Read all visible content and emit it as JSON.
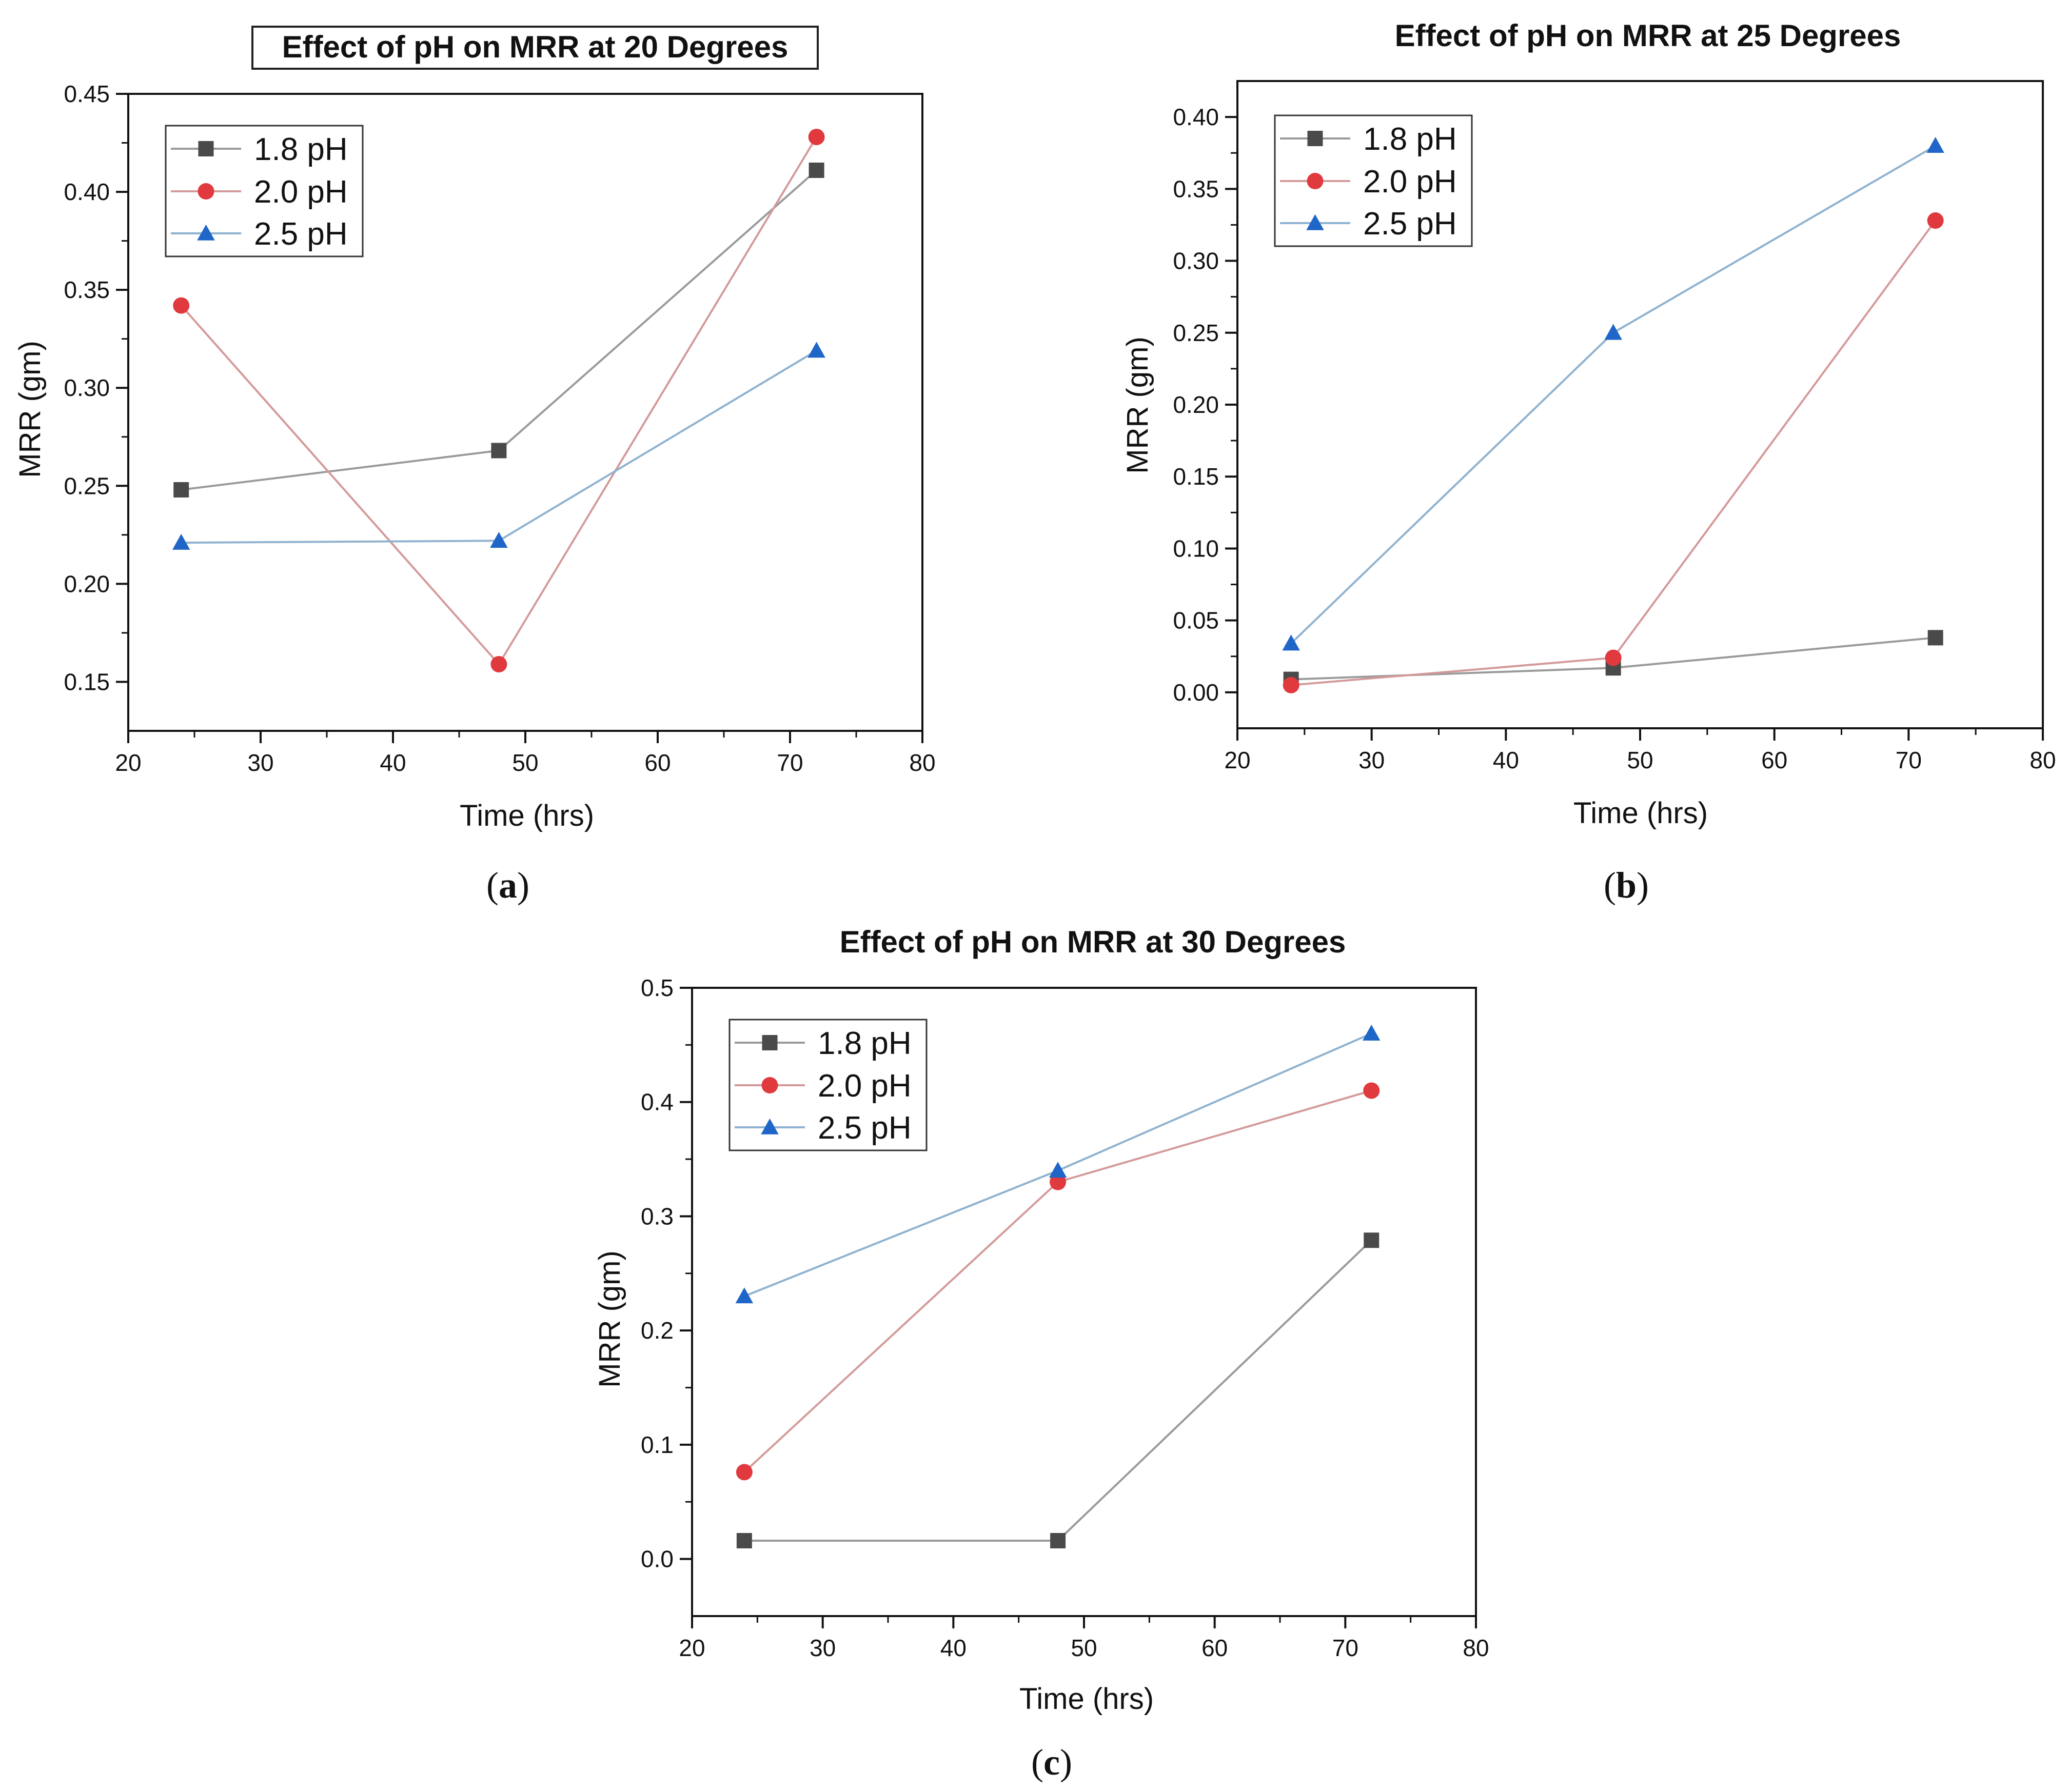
{
  "chart_data": [
    {
      "type": "line",
      "title": "Effect of pH on MRR at 20 Degrees",
      "caption_letter": "a",
      "xlabel": "Time (hrs)",
      "ylabel": "MRR (gm)",
      "xlim": [
        20,
        80
      ],
      "ylim": [
        0.125,
        0.45
      ],
      "xticks": [
        "20",
        "30",
        "40",
        "50",
        "60",
        "70",
        "80"
      ],
      "yticks": [
        "0.15",
        "0.20",
        "0.25",
        "0.30",
        "0.35",
        "0.40",
        "0.45"
      ],
      "legend_position": "top-left",
      "x": [
        24,
        48,
        72
      ],
      "series": [
        {
          "name": "1.8 pH",
          "marker": "square",
          "color": "#4a4a4a",
          "line_color": "#9a9a9a",
          "values": [
            0.248,
            0.268,
            0.411
          ]
        },
        {
          "name": "2.0 pH",
          "marker": "circle",
          "color": "#e0393e",
          "line_color": "#d49a9a",
          "values": [
            0.342,
            0.159,
            0.428
          ]
        },
        {
          "name": "2.5 pH",
          "marker": "triangle",
          "color": "#1f66c8",
          "line_color": "#8fb2cf",
          "values": [
            0.221,
            0.222,
            0.319
          ]
        }
      ]
    },
    {
      "type": "line",
      "title": "Effect of pH on MRR at 25 Degrees",
      "caption_letter": "b",
      "xlabel": "Time (hrs)",
      "ylabel": "MRR (gm)",
      "xlim": [
        20,
        80
      ],
      "ylim": [
        -0.025,
        0.425
      ],
      "xticks": [
        "20",
        "30",
        "40",
        "50",
        "60",
        "70",
        "80"
      ],
      "yticks": [
        "0.00",
        "0.05",
        "0.10",
        "0.15",
        "0.20",
        "0.25",
        "0.30",
        "0.35",
        "0.40"
      ],
      "legend_position": "top-left",
      "x": [
        24,
        48,
        72
      ],
      "series": [
        {
          "name": "1.8 pH",
          "marker": "square",
          "color": "#4a4a4a",
          "line_color": "#9a9a9a",
          "values": [
            0.009,
            0.017,
            0.038
          ]
        },
        {
          "name": "2.0 pH",
          "marker": "circle",
          "color": "#e0393e",
          "line_color": "#d49a9a",
          "values": [
            0.005,
            0.024,
            0.328
          ]
        },
        {
          "name": "2.5 pH",
          "marker": "triangle",
          "color": "#1f66c8",
          "line_color": "#8fb2cf",
          "values": [
            0.034,
            0.25,
            0.38
          ]
        }
      ]
    },
    {
      "type": "line",
      "title": "Effect of pH on MRR at 30 Degrees",
      "caption_letter": "c",
      "xlabel": "Time (hrs)",
      "ylabel": "MRR (gm)",
      "xlim": [
        20,
        80
      ],
      "ylim": [
        -0.05,
        0.5
      ],
      "xticks": [
        "20",
        "30",
        "40",
        "50",
        "60",
        "70",
        "80"
      ],
      "yticks": [
        "0.0",
        "0.1",
        "0.2",
        "0.3",
        "0.4",
        "0.5"
      ],
      "legend_position": "top-left",
      "x": [
        24,
        48,
        72
      ],
      "series": [
        {
          "name": "1.8 pH",
          "marker": "square",
          "color": "#4a4a4a",
          "line_color": "#9a9a9a",
          "values": [
            0.016,
            0.016,
            0.279
          ]
        },
        {
          "name": "2.0 pH",
          "marker": "circle",
          "color": "#e0393e",
          "line_color": "#d49a9a",
          "values": [
            0.076,
            0.33,
            0.41
          ]
        },
        {
          "name": "2.5 pH",
          "marker": "triangle",
          "color": "#1f66c8",
          "line_color": "#8fb2cf",
          "values": [
            0.23,
            0.34,
            0.46
          ]
        }
      ]
    }
  ]
}
